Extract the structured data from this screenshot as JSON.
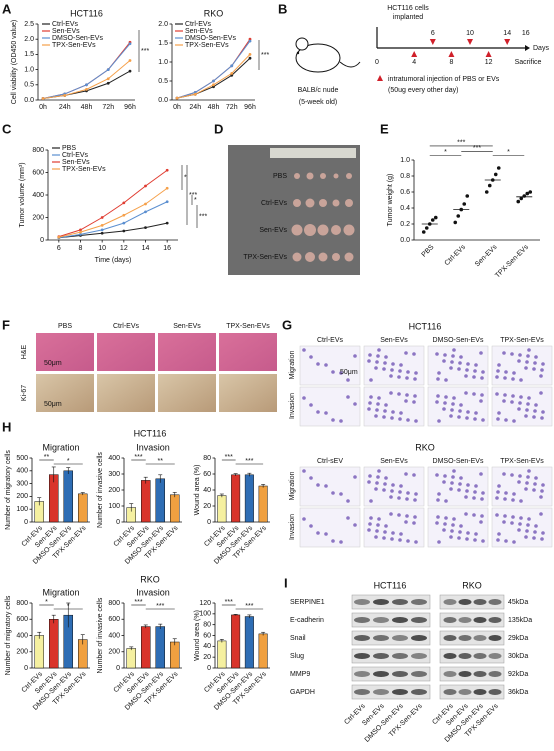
{
  "chart_data": [
    {
      "type": "line",
      "title": "HCT116",
      "ylabel": "Cell viability (OD450 value)",
      "categories": [
        "0h",
        "24h",
        "48h",
        "72h",
        "96h"
      ],
      "series": [
        {
          "name": "Ctrl-EVs",
          "color": "#222222",
          "values": [
            0.05,
            0.15,
            0.3,
            0.55,
            0.95
          ]
        },
        {
          "name": "Sen-EVs",
          "color": "#e03c31",
          "values": [
            0.05,
            0.2,
            0.5,
            1.0,
            1.9
          ]
        },
        {
          "name": "DMSO-Sen-EVs",
          "color": "#5b8fd0",
          "values": [
            0.05,
            0.2,
            0.5,
            1.0,
            1.85
          ]
        },
        {
          "name": "TPX-Sen-EVs",
          "color": "#f5a04a",
          "values": [
            0.05,
            0.15,
            0.35,
            0.7,
            1.3
          ]
        }
      ],
      "ylim": [
        0,
        2.5
      ],
      "yticks": [
        {
          "value": 0,
          "label": "0.0"
        },
        {
          "value": 0.5,
          "label": "0.5"
        },
        {
          "value": 1,
          "label": "1.0"
        },
        {
          "value": 1.5,
          "label": "1.5"
        },
        {
          "value": 2,
          "label": "2.0"
        },
        {
          "value": 2.5,
          "label": "2.5"
        }
      ],
      "annotations": [
        "***"
      ]
    },
    {
      "type": "line",
      "title": "RKO",
      "categories": [
        "0h",
        "24h",
        "48h",
        "72h",
        "96h"
      ],
      "series": [
        {
          "name": "Ctrl-EVs",
          "color": "#222222",
          "values": [
            0.05,
            0.15,
            0.35,
            0.65,
            1.1
          ]
        },
        {
          "name": "Sen-EVs",
          "color": "#e03c31",
          "values": [
            0.05,
            0.2,
            0.5,
            0.9,
            1.6
          ]
        },
        {
          "name": "DMSO-Sen-EVs",
          "color": "#5b8fd0",
          "values": [
            0.05,
            0.2,
            0.5,
            0.9,
            1.55
          ]
        },
        {
          "name": "TPX-Sen-EVs",
          "color": "#f5a04a",
          "values": [
            0.05,
            0.15,
            0.4,
            0.7,
            1.2
          ]
        }
      ],
      "ylim": [
        0,
        2
      ],
      "yticks": [
        {
          "value": 0,
          "label": "0.0"
        },
        {
          "value": 0.5,
          "label": "0.5"
        },
        {
          "value": 1,
          "label": "1.0"
        },
        {
          "value": 1.5,
          "label": "1.5"
        },
        {
          "value": 2,
          "label": "2.0"
        }
      ],
      "annotations": [
        "***"
      ]
    },
    {
      "type": "line",
      "ylabel": "Tumor volume (mm³)",
      "xlabel": "Time (days)",
      "x": [
        6,
        8,
        10,
        12,
        14,
        16
      ],
      "xlim": [
        5,
        17
      ],
      "xticks": [
        6,
        8,
        10,
        12,
        14,
        16
      ],
      "series": [
        {
          "name": "PBS",
          "color": "#222222",
          "values": [
            20,
            40,
            60,
            80,
            110,
            150
          ]
        },
        {
          "name": "Ctrl-EVs",
          "color": "#5b8fd0",
          "values": [
            20,
            50,
            90,
            150,
            250,
            340
          ]
        },
        {
          "name": "Sen-EVs",
          "color": "#e03c31",
          "values": [
            30,
            90,
            200,
            330,
            480,
            620
          ]
        },
        {
          "name": "TPX-Sen-EVs",
          "color": "#f5a04a",
          "values": [
            25,
            70,
            130,
            220,
            320,
            460
          ]
        }
      ],
      "ylim": [
        0,
        800
      ],
      "yticks": [
        0,
        200,
        400,
        600,
        800
      ],
      "annotations": [
        "*",
        "***",
        "*",
        "***"
      ]
    },
    {
      "type": "dot",
      "ylabel": "Tumor weight (g)",
      "categories": [
        "PBS",
        "Ctrl-EVs",
        "Sen-EVs",
        "TPX-Sen-EVs"
      ],
      "points": [
        [
          0.1,
          0.15,
          0.2,
          0.25,
          0.28
        ],
        [
          0.22,
          0.3,
          0.38,
          0.45,
          0.55
        ],
        [
          0.6,
          0.68,
          0.75,
          0.82,
          0.9
        ],
        [
          0.48,
          0.52,
          0.55,
          0.58,
          0.6
        ]
      ],
      "means": [
        0.2,
        0.38,
        0.75,
        0.54
      ],
      "ylim": [
        0,
        1
      ],
      "yticks": [
        {
          "value": 0,
          "label": "0.0"
        },
        {
          "value": 0.2,
          "label": "0.2"
        },
        {
          "value": 0.4,
          "label": "0.4"
        },
        {
          "value": 0.6,
          "label": "0.6"
        },
        {
          "value": 0.8,
          "label": "0.8"
        },
        {
          "value": 1,
          "label": "1.0"
        }
      ],
      "annotations": [
        "*",
        "***",
        "***",
        "*"
      ]
    },
    {
      "type": "bar",
      "title": "Migration",
      "ylabel": "Number of migratory cells",
      "categories": [
        "Ctrl-EVs",
        "Sen-EVs",
        "DMSO-Sen-EVs",
        "TPX-Sen-EVs"
      ],
      "values": [
        160,
        370,
        400,
        220
      ],
      "errors": [
        30,
        60,
        25,
        10
      ],
      "colors": [
        "#f5f0a0",
        "#d9342b",
        "#2e6db4",
        "#f0a040"
      ],
      "ylim": [
        0,
        500
      ],
      "yticks": [
        0,
        100,
        200,
        300,
        400,
        500
      ],
      "annotations": [
        "**",
        "*"
      ]
    },
    {
      "type": "bar",
      "title": "Invasion",
      "ylabel": "Number of invasive cells",
      "categories": [
        "Ctrl-EVs",
        "Sen-EVs",
        "DMSO-Sen-EVs",
        "TPX-Sen-EVs"
      ],
      "values": [
        90,
        260,
        270,
        170
      ],
      "errors": [
        25,
        20,
        25,
        15
      ],
      "colors": [
        "#f5f0a0",
        "#d9342b",
        "#2e6db4",
        "#f0a040"
      ],
      "ylim": [
        0,
        400
      ],
      "yticks": [
        0,
        100,
        200,
        300,
        400
      ],
      "annotations": [
        "***",
        "**"
      ]
    },
    {
      "type": "bar",
      "ylabel": "Wound area (%)",
      "categories": [
        "Ctrl-EVs",
        "Sen-EVs",
        "DMSO-Sen-EVs",
        "TPX-Sen-EVs"
      ],
      "values": [
        33,
        59,
        59,
        45
      ],
      "errors": [
        2,
        1.5,
        2,
        2
      ],
      "colors": [
        "#f5f0a0",
        "#d9342b",
        "#2e6db4",
        "#f0a040"
      ],
      "ylim": [
        0,
        80
      ],
      "yticks": [
        0,
        20,
        40,
        60,
        80
      ],
      "annotations": [
        "***",
        "***"
      ]
    },
    {
      "type": "bar",
      "title": "Migration",
      "ylabel": "Number of migratory cells",
      "categories": [
        "Ctrl-EVs",
        "Sen-EVs",
        "DMSO-Sen-EVs",
        "TPX-Sen-EVs"
      ],
      "values": [
        400,
        600,
        650,
        350
      ],
      "errors": [
        40,
        50,
        150,
        60
      ],
      "colors": [
        "#f5f0a0",
        "#d9342b",
        "#2e6db4",
        "#f0a040"
      ],
      "ylim": [
        0,
        800
      ],
      "yticks": [
        0,
        200,
        400,
        600,
        800
      ],
      "annotations": [
        "*",
        "*"
      ]
    },
    {
      "type": "bar",
      "title": "Invasion",
      "ylabel": "Number of invasive cells",
      "categories": [
        "Ctrl-EVs",
        "Sen-EVs",
        "DMSO-Sen-EVs",
        "TPX-Sen-EVs"
      ],
      "values": [
        240,
        510,
        510,
        320
      ],
      "errors": [
        20,
        20,
        30,
        40
      ],
      "colors": [
        "#f5f0a0",
        "#d9342b",
        "#2e6db4",
        "#f0a040"
      ],
      "ylim": [
        0,
        800
      ],
      "yticks": [
        0,
        200,
        400,
        600,
        800
      ],
      "annotations": [
        "***",
        "***"
      ]
    },
    {
      "type": "bar",
      "ylabel": "Wound area (%)",
      "categories": [
        "Ctrl-EVs",
        "Sen-EVs",
        "DMSO-Sen-EVs",
        "TPX-Sen-EVs"
      ],
      "values": [
        50,
        98,
        95,
        63
      ],
      "errors": [
        3,
        1,
        3,
        3
      ],
      "colors": [
        "#f5f0a0",
        "#d9342b",
        "#2e6db4",
        "#f0a040"
      ],
      "ylim": [
        0,
        120
      ],
      "yticks": [
        0,
        20,
        40,
        60,
        80,
        100,
        120
      ],
      "annotations": [
        "***",
        "***"
      ]
    }
  ],
  "panels": [
    "A",
    "B",
    "C",
    "D",
    "E",
    "F",
    "G",
    "H",
    "I"
  ],
  "B": {
    "cells": [
      "HCT116 cells",
      "implanted"
    ],
    "mouse": [
      "BALB/c nude",
      "(5-week old)"
    ],
    "top_days": [
      6,
      10,
      14,
      16
    ],
    "bottom_days": [
      0,
      4,
      8,
      12
    ],
    "axis": "Days",
    "end": "Sacrifice",
    "legend": [
      "intratumoral injection of PBS or EVs",
      "(50ug every other day)"
    ]
  },
  "D": {
    "labels": [
      "PBS",
      "Ctrl-EVs",
      "Sen-EVs",
      "TPX-Sen-EVs"
    ]
  },
  "F": {
    "columns": [
      "PBS",
      "Ctrl-EVs",
      "Sen-EVs",
      "TPX-Sen-EVs"
    ],
    "rows": [
      "H&E",
      "Ki-67"
    ],
    "scale": [
      "50μm",
      "50μm"
    ]
  },
  "G": {
    "hct_title": "HCT116",
    "hct_columns": [
      "Ctrl-EVs",
      "Sen-EVs",
      "DMSO-Sen-EVs",
      "TPX-Sen-EVs"
    ],
    "hct_rows": [
      "Migration",
      "Invasion"
    ],
    "scale": "50μm",
    "rko_title": "RKO",
    "rko_columns": [
      "Ctrl-sEV",
      "Sen-EVs",
      "DMSO-Sen-EVs",
      "TPX-Sen-EVs"
    ],
    "rko_rows": [
      "Migration",
      "Invasion"
    ]
  },
  "H": {
    "titles": [
      "HCT116",
      "RKO"
    ]
  },
  "I": {
    "groups": [
      "HCT116",
      "RKO"
    ],
    "proteins": [
      "SERPINE1",
      "E-cadherin",
      "Snail",
      "Slug",
      "MMP9",
      "GAPDH"
    ],
    "sizes": [
      "45kDa",
      "135kDa",
      "29kDa",
      "30kDa",
      "92kDa",
      "36kDa"
    ],
    "lanes": [
      "Ctrl-EVs",
      "Sen-EVs",
      "DMSO-Sen-EVs",
      "TPX-Sen-EVs"
    ]
  }
}
